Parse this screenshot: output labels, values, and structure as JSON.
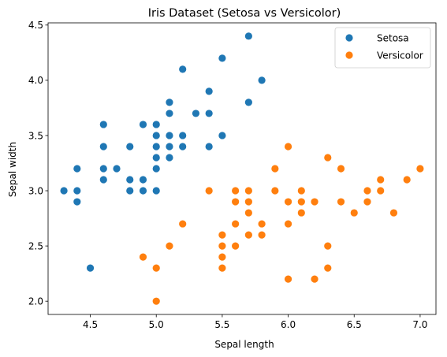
{
  "chart_data": {
    "type": "scatter",
    "title": "Iris Dataset (Setosa vs Versicolor)",
    "xlabel": "Sepal length",
    "ylabel": "Sepal width",
    "xlim": [
      4.18,
      7.12
    ],
    "ylim": [
      1.88,
      4.52
    ],
    "xticks": [
      "4.5",
      "5.0",
      "5.5",
      "6.0",
      "6.5",
      "7.0"
    ],
    "yticks": [
      "2.0",
      "2.5",
      "3.0",
      "3.5",
      "4.0",
      "4.5"
    ],
    "grid": false,
    "legend_position": "top-right",
    "series": [
      {
        "name": "Setosa",
        "color": "#1f77b4",
        "points": [
          [
            4.3,
            3.0
          ],
          [
            4.4,
            2.9
          ],
          [
            4.4,
            3.0
          ],
          [
            4.4,
            3.2
          ],
          [
            4.5,
            2.3
          ],
          [
            4.6,
            3.1
          ],
          [
            4.6,
            3.2
          ],
          [
            4.6,
            3.4
          ],
          [
            4.6,
            3.6
          ],
          [
            4.7,
            3.2
          ],
          [
            4.8,
            3.0
          ],
          [
            4.8,
            3.1
          ],
          [
            4.8,
            3.4
          ],
          [
            4.9,
            3.0
          ],
          [
            4.9,
            3.1
          ],
          [
            4.9,
            3.6
          ],
          [
            5.0,
            3.0
          ],
          [
            5.0,
            3.2
          ],
          [
            5.0,
            3.3
          ],
          [
            5.0,
            3.4
          ],
          [
            5.0,
            3.5
          ],
          [
            5.0,
            3.6
          ],
          [
            5.1,
            3.3
          ],
          [
            5.1,
            3.4
          ],
          [
            5.1,
            3.5
          ],
          [
            5.1,
            3.7
          ],
          [
            5.1,
            3.8
          ],
          [
            5.2,
            3.4
          ],
          [
            5.2,
            3.5
          ],
          [
            5.2,
            4.1
          ],
          [
            5.3,
            3.7
          ],
          [
            5.4,
            3.4
          ],
          [
            5.4,
            3.7
          ],
          [
            5.4,
            3.9
          ],
          [
            5.5,
            3.5
          ],
          [
            5.5,
            4.2
          ],
          [
            5.7,
            3.8
          ],
          [
            5.7,
            4.4
          ],
          [
            5.8,
            4.0
          ]
        ]
      },
      {
        "name": "Versicolor",
        "color": "#ff7f0e",
        "points": [
          [
            4.9,
            2.4
          ],
          [
            5.0,
            2.0
          ],
          [
            5.0,
            2.3
          ],
          [
            5.1,
            2.5
          ],
          [
            5.2,
            2.7
          ],
          [
            5.4,
            3.0
          ],
          [
            5.5,
            2.3
          ],
          [
            5.5,
            2.4
          ],
          [
            5.5,
            2.5
          ],
          [
            5.5,
            2.6
          ],
          [
            5.6,
            2.5
          ],
          [
            5.6,
            2.7
          ],
          [
            5.6,
            2.9
          ],
          [
            5.6,
            3.0
          ],
          [
            5.7,
            2.6
          ],
          [
            5.7,
            2.8
          ],
          [
            5.7,
            2.9
          ],
          [
            5.7,
            3.0
          ],
          [
            5.8,
            2.6
          ],
          [
            5.8,
            2.7
          ],
          [
            5.9,
            3.0
          ],
          [
            5.9,
            3.2
          ],
          [
            6.0,
            2.2
          ],
          [
            6.0,
            2.7
          ],
          [
            6.0,
            2.9
          ],
          [
            6.0,
            3.4
          ],
          [
            6.1,
            2.8
          ],
          [
            6.1,
            2.9
          ],
          [
            6.1,
            3.0
          ],
          [
            6.2,
            2.2
          ],
          [
            6.2,
            2.9
          ],
          [
            6.3,
            2.3
          ],
          [
            6.3,
            2.5
          ],
          [
            6.3,
            3.3
          ],
          [
            6.4,
            2.9
          ],
          [
            6.4,
            3.2
          ],
          [
            6.5,
            2.8
          ],
          [
            6.6,
            2.9
          ],
          [
            6.6,
            3.0
          ],
          [
            6.7,
            3.0
          ],
          [
            6.7,
            3.1
          ],
          [
            6.8,
            2.8
          ],
          [
            6.9,
            3.1
          ],
          [
            7.0,
            3.2
          ]
        ]
      }
    ]
  }
}
